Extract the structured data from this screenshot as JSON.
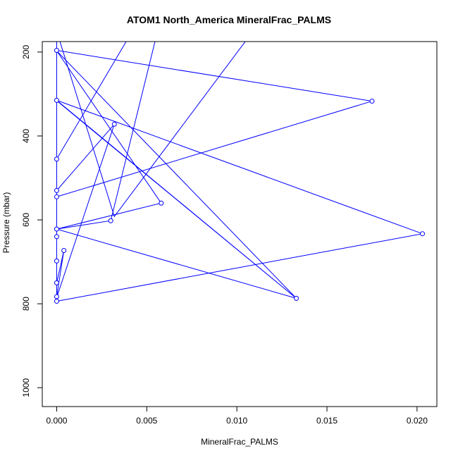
{
  "chart_data": {
    "type": "line",
    "title": "ATOM1 North_America MineralFrac_PALMS",
    "xlabel": "MineralFrac_PALMS",
    "ylabel": "Pressure (mbar)",
    "xlim": [
      -0.0008,
      0.0211
    ],
    "ylim": [
      1045,
      175
    ],
    "y_reversed": true,
    "x_ticks": [
      0.0,
      0.005,
      0.01,
      0.015,
      0.02
    ],
    "x_tick_labels": [
      "0.000",
      "0.005",
      "0.010",
      "0.015",
      "0.020"
    ],
    "y_ticks": [
      200,
      400,
      600,
      800,
      1000
    ],
    "y_tick_labels": [
      "200",
      "400",
      "600",
      "800",
      "1000"
    ],
    "grid": false,
    "series": [
      {
        "color": "#0000ff",
        "points": [
          {
            "x": 0.0,
            "y": 150
          },
          {
            "x": 0.0,
            "y": 196
          },
          {
            "x": 0.0175,
            "y": 317
          },
          {
            "x": 0.0,
            "y": 545
          },
          {
            "x": 0.0,
            "y": 640
          },
          {
            "x": 0.0,
            "y": 625
          },
          {
            "x": 0.0,
            "y": 530
          },
          {
            "x": 0.0032,
            "y": 372
          },
          {
            "x": 0.0,
            "y": 785
          },
          {
            "x": 0.0,
            "y": 748
          },
          {
            "x": 0.0,
            "y": 790
          },
          {
            "x": 0.0,
            "y": 698
          },
          {
            "x": 0.0,
            "y": 455
          },
          {
            "x": 0.0042,
            "y": 150
          },
          {
            "x": 0.0,
            "y": 150
          },
          {
            "x": 0.0,
            "y": 750
          },
          {
            "x": 0.0004,
            "y": 673
          },
          {
            "x": 0.0,
            "y": 783
          },
          {
            "x": 0.0,
            "y": 150
          },
          {
            "x": 0.0,
            "y": 794
          },
          {
            "x": 0.0203,
            "y": 633
          },
          {
            "x": 0.0,
            "y": 315
          },
          {
            "x": 0.0133,
            "y": 787
          },
          {
            "x": 0.0,
            "y": 197
          },
          {
            "x": 0.0058,
            "y": 560
          },
          {
            "x": 0.0,
            "y": 622
          },
          {
            "x": 0.0,
            "y": 150
          },
          {
            "x": 0.0,
            "y": 316
          },
          {
            "x": 0.0133,
            "y": 787
          },
          {
            "x": 0.0,
            "y": 622
          },
          {
            "x": 0.003,
            "y": 602
          },
          {
            "x": 0.0056,
            "y": 150
          },
          {
            "x": 0.0,
            "y": 150
          },
          {
            "x": 0.0032,
            "y": 592
          },
          {
            "x": 0.0109,
            "y": 150
          }
        ],
        "markers": [
          {
            "x": 0.0,
            "y": 196
          },
          {
            "x": 0.0175,
            "y": 317
          },
          {
            "x": 0.0,
            "y": 315
          },
          {
            "x": 0.0032,
            "y": 372
          },
          {
            "x": 0.0,
            "y": 455
          },
          {
            "x": 0.0,
            "y": 530
          },
          {
            "x": 0.0,
            "y": 545
          },
          {
            "x": 0.0058,
            "y": 560
          },
          {
            "x": 0.003,
            "y": 602
          },
          {
            "x": 0.0,
            "y": 622
          },
          {
            "x": 0.0203,
            "y": 633
          },
          {
            "x": 0.0,
            "y": 640
          },
          {
            "x": 0.0004,
            "y": 673
          },
          {
            "x": 0.0,
            "y": 698
          },
          {
            "x": 0.0,
            "y": 750
          },
          {
            "x": 0.0,
            "y": 783
          },
          {
            "x": 0.0133,
            "y": 787
          },
          {
            "x": 0.0,
            "y": 794
          }
        ]
      }
    ]
  }
}
